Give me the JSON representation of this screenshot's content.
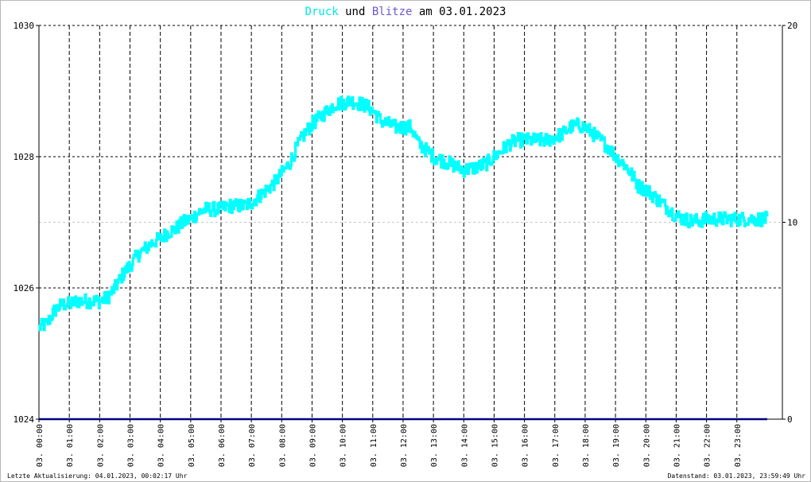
{
  "title": {
    "part1": "Druck",
    "part2": " und ",
    "part3": "Blitze",
    "part4": " am 03.01.2023"
  },
  "colors": {
    "pressure": "#00FFFF",
    "lightning": "#000080",
    "title_druck": "#00E8E8",
    "title_blitze": "#6A5ACD",
    "grid": "#000000",
    "grid_light": "#c8c8c8"
  },
  "footer": {
    "left": "Letzte Aktualisierung: 04.01.2023, 00:02:17 Uhr",
    "right": "Datenstand: 03.01.2023, 23:59:49 Uhr"
  },
  "chart_data": {
    "type": "line",
    "title": "Druck und Blitze am 03.01.2023",
    "x_ticks": [
      "03. 00:00",
      "03. 01:00",
      "03. 02:00",
      "03. 03:00",
      "03. 04:00",
      "03. 05:00",
      "03. 06:00",
      "03. 07:00",
      "03. 08:00",
      "03. 09:00",
      "03. 10:00",
      "03. 11:00",
      "03. 12:00",
      "03. 13:00",
      "03. 14:00",
      "03. 15:00",
      "03. 16:00",
      "03. 17:00",
      "03. 18:00",
      "03. 19:00",
      "03. 20:00",
      "03. 21:00",
      "03. 22:00",
      "03. 23:00"
    ],
    "y_left": {
      "min": 1024,
      "max": 1030,
      "ticks": [
        "1024",
        "1026",
        "1028",
        "1030"
      ]
    },
    "y_right": {
      "min": 0,
      "max": 20,
      "ticks": [
        "0",
        "10",
        "20"
      ]
    },
    "grid": true,
    "series": [
      {
        "name": "Druck",
        "axis": "left",
        "x_hours": [
          0,
          0.25,
          0.5,
          0.75,
          1,
          1.25,
          1.5,
          1.75,
          2,
          2.25,
          2.5,
          2.75,
          3,
          3.25,
          3.5,
          3.75,
          4,
          4.25,
          4.5,
          4.75,
          5,
          5.25,
          5.5,
          5.75,
          6,
          6.25,
          6.5,
          6.75,
          7,
          7.25,
          7.5,
          7.75,
          8,
          8.25,
          8.5,
          8.75,
          9,
          9.25,
          9.5,
          9.75,
          10,
          10.25,
          10.5,
          10.75,
          11,
          11.25,
          11.5,
          11.75,
          12,
          12.25,
          12.5,
          12.75,
          13,
          13.25,
          13.5,
          13.75,
          14,
          14.25,
          14.5,
          14.75,
          15,
          15.25,
          15.5,
          15.75,
          16,
          16.25,
          16.5,
          16.75,
          17,
          17.25,
          17.5,
          17.75,
          18,
          18.25,
          18.5,
          18.75,
          19,
          19.25,
          19.5,
          19.75,
          20,
          20.25,
          20.5,
          20.75,
          21,
          21.25,
          21.5,
          21.75,
          22,
          22.25,
          22.5,
          22.75,
          23,
          23.25,
          23.5,
          23.75,
          24
        ],
        "values": [
          1025.4,
          1025.45,
          1025.65,
          1025.75,
          1025.75,
          1025.8,
          1025.8,
          1025.8,
          1025.8,
          1025.85,
          1026.0,
          1026.2,
          1026.35,
          1026.5,
          1026.6,
          1026.7,
          1026.75,
          1026.85,
          1026.9,
          1027.0,
          1027.05,
          1027.15,
          1027.2,
          1027.2,
          1027.2,
          1027.25,
          1027.25,
          1027.25,
          1027.3,
          1027.4,
          1027.5,
          1027.6,
          1027.75,
          1027.9,
          1028.15,
          1028.35,
          1028.5,
          1028.6,
          1028.7,
          1028.8,
          1028.82,
          1028.85,
          1028.82,
          1028.78,
          1028.7,
          1028.55,
          1028.5,
          1028.45,
          1028.45,
          1028.45,
          1028.2,
          1028.1,
          1028.0,
          1027.95,
          1027.9,
          1027.85,
          1027.8,
          1027.82,
          1027.85,
          1027.9,
          1028.0,
          1028.1,
          1028.2,
          1028.25,
          1028.25,
          1028.25,
          1028.25,
          1028.25,
          1028.3,
          1028.35,
          1028.45,
          1028.48,
          1028.45,
          1028.35,
          1028.25,
          1028.15,
          1028.0,
          1027.9,
          1027.75,
          1027.55,
          1027.5,
          1027.4,
          1027.3,
          1027.2,
          1027.1,
          1027.05,
          1027.02,
          1027.02,
          1027.05,
          1027.05,
          1027.05,
          1027.05,
          1027.05,
          1027.05,
          1027.05,
          1027.05,
          1027.05
        ]
      },
      {
        "name": "Blitze",
        "axis": "right",
        "x_hours": [
          0,
          24
        ],
        "values": [
          0,
          0
        ]
      }
    ]
  }
}
